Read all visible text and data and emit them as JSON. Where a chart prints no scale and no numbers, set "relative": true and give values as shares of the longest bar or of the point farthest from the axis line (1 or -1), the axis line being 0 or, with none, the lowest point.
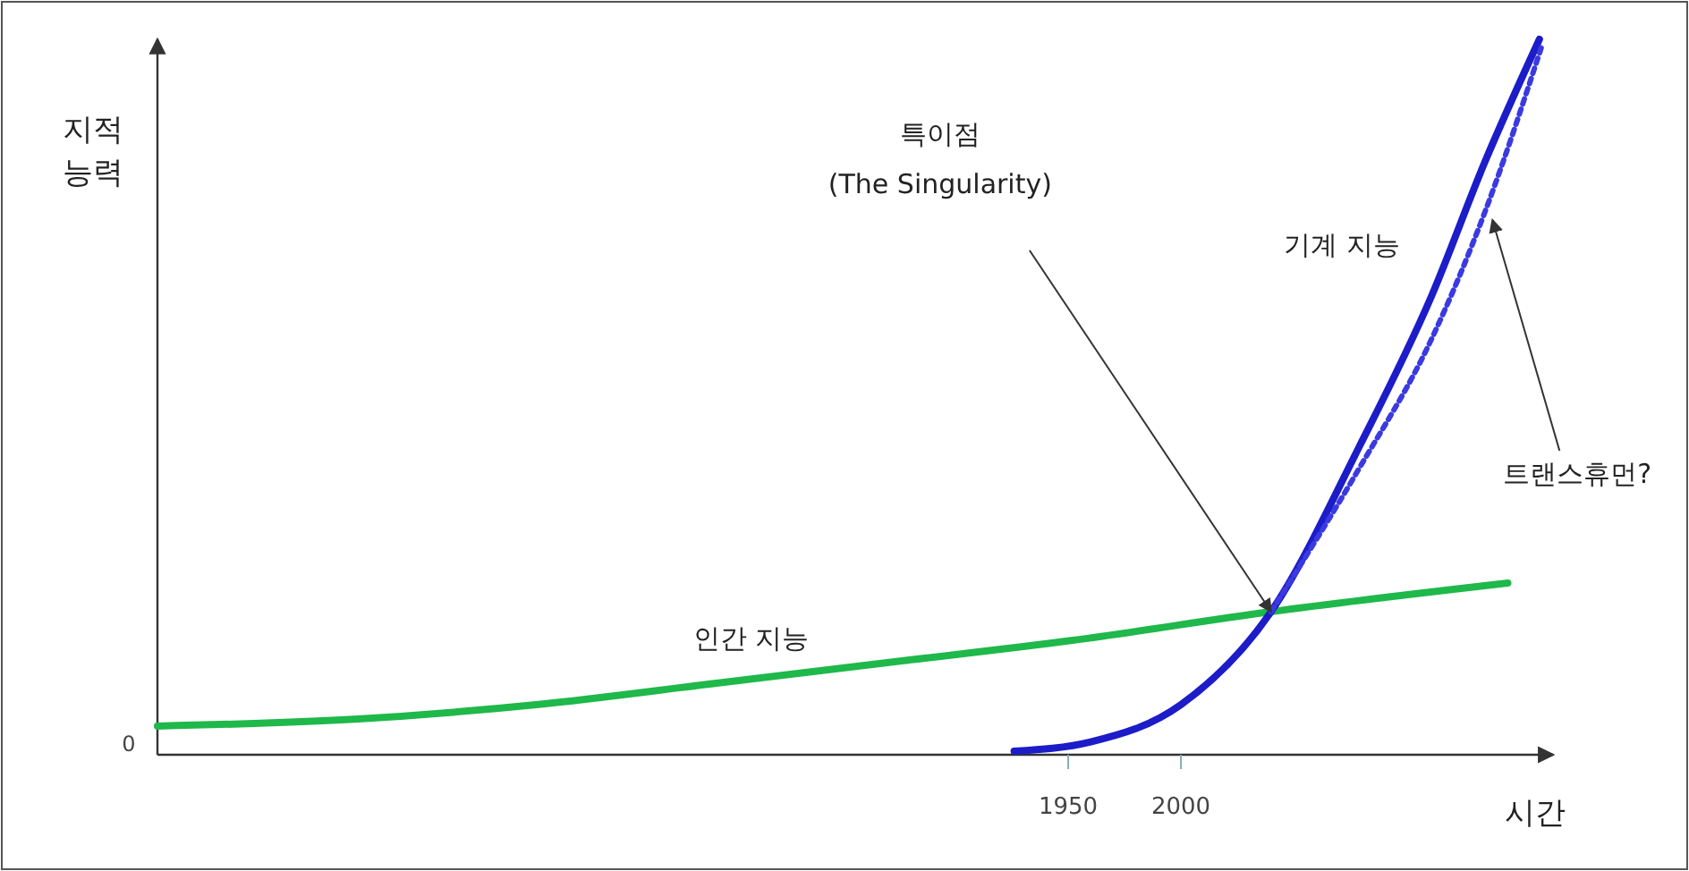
{
  "chart_data": {
    "type": "line",
    "relative": true,
    "xlabel": "시간",
    "ylabel": "지적 능력",
    "xlim": [
      1546,
      2165
    ],
    "xticks": [
      1950,
      2000
    ],
    "grid": false,
    "legend": false,
    "marker": "none",
    "annotations": [
      "특이점\n(The Singularity)",
      "0"
    ],
    "series": [
      {
        "name": "인간 지능",
        "color": "#1fb84a",
        "line_style": "solid",
        "x": [
          1546,
          1635,
          1714,
          1794,
          1873,
          1952,
          2040,
          2145
        ],
        "values": [
          0.04,
          0.05,
          0.07,
          0.1,
          0.13,
          0.16,
          0.2,
          0.24
        ]
      },
      {
        "name": "기계 지능",
        "color": "#1c1cc8",
        "line_style": "solid",
        "x": [
          1926,
          1960,
          2000,
          2040,
          2079,
          2111,
          2135,
          2159
        ],
        "values": [
          0.005,
          0.018,
          0.07,
          0.2,
          0.43,
          0.64,
          0.83,
          1
        ]
      },
      {
        "name": "트랜스휴먼?",
        "color": "#3a3ae0",
        "line_style": "dotted",
        "x": [
          2040,
          2079,
          2111,
          2135,
          2160
        ],
        "values": [
          0.2,
          0.4,
          0.58,
          0.76,
          0.99
        ]
      }
    ]
  }
}
